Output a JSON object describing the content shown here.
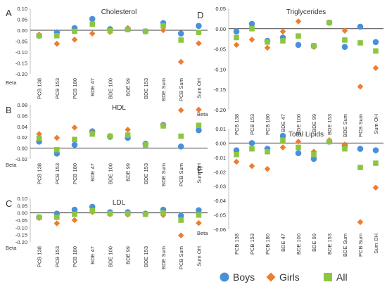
{
  "legend": {
    "position": "bottom-right",
    "entries": [
      {
        "name": "Boys",
        "marker": "circle",
        "color": "#4A90D9"
      },
      {
        "name": "Girls",
        "marker": "diamond",
        "color": "#ED7D31"
      },
      {
        "name": "All",
        "marker": "square",
        "color": "#8CC63F"
      }
    ]
  },
  "chart_data": [
    {
      "letter": "A",
      "type": "scatter",
      "title": "Cholesterol",
      "ylabel": "Beta",
      "ylim": [
        -0.2,
        0.1
      ],
      "yticks": [
        0.1,
        0.05,
        0,
        -0.05,
        -0.1,
        -0.15,
        -0.2
      ],
      "yticklabels": [
        "0.10",
        "0.05",
        "0.00",
        "-0.05",
        "-0.10",
        "-0.15",
        "-0.20"
      ],
      "categories": [
        "PCB 138",
        "PCB 153",
        "PCB 180",
        "BDE 47",
        "BDE 100",
        "BDE 99",
        "BDE 153",
        "BDE Sum",
        "PCB Sum",
        "Sum OH"
      ],
      "series": [
        {
          "name": "Boys",
          "values": [
            -0.025,
            -0.01,
            0.01,
            0.052,
            0.005,
            0.005,
            -0.005,
            0.033,
            -0.015,
            0.02
          ]
        },
        {
          "name": "Girls",
          "values": [
            -0.02,
            -0.062,
            -0.043,
            -0.015,
            -0.008,
            0.01,
            -0.005,
            0.0,
            -0.145,
            -0.06
          ]
        },
        {
          "name": "All",
          "values": [
            -0.025,
            -0.025,
            -0.005,
            0.028,
            -0.002,
            0.003,
            -0.005,
            0.02,
            -0.045,
            -0.01
          ]
        }
      ]
    },
    {
      "letter": "B",
      "type": "scatter",
      "title": "HDL",
      "ylabel": "Beta",
      "ylim": [
        -0.02,
        0.08
      ],
      "yticks": [
        0.08,
        0.06,
        0.04,
        0.02,
        0,
        -0.02
      ],
      "yticklabels": [
        "0.08",
        "0.06",
        "0.04",
        "0.02",
        "0.00",
        "-0.02"
      ],
      "categories": [
        "PCB 138",
        "PCB 153",
        "PCB 180",
        "BDE 47",
        "BDE 100",
        "BDE 99",
        "BDE 153",
        "BDE Sum",
        "PCB Sum",
        "Sum OH"
      ],
      "series": [
        {
          "name": "Boys",
          "values": [
            0.012,
            -0.01,
            0.006,
            0.031,
            0.021,
            0.019,
            0.008,
            0.043,
            0.003,
            0.033
          ]
        },
        {
          "name": "Girls",
          "values": [
            0.026,
            0.019,
            0.038,
            0.028,
            0.023,
            0.034,
            0.005,
            0.043,
            0.07,
            0.071
          ]
        },
        {
          "name": "All",
          "values": [
            0.018,
            -0.003,
            0.016,
            0.026,
            0.022,
            0.024,
            0.006,
            0.041,
            0.022,
            0.042
          ]
        }
      ]
    },
    {
      "letter": "C",
      "type": "scatter",
      "title": "LDL",
      "ylabel": "Beta",
      "ylim": [
        -0.2,
        0.1
      ],
      "yticks": [
        0.1,
        0.05,
        0,
        -0.05,
        -0.1,
        -0.15,
        -0.2
      ],
      "yticklabels": [
        "0.10",
        "0.05",
        "0.00",
        "-0.05",
        "-0.10",
        "-0.15",
        "-0.20"
      ],
      "categories": [
        "PCB 138",
        "PCB 153",
        "PCB 180",
        "BDE 47",
        "BDE 100",
        "BDE 99",
        "BDE 153",
        "BDE Sum",
        "PCB Sum",
        "Sum OH"
      ],
      "series": [
        {
          "name": "Boys",
          "values": [
            -0.03,
            -0.005,
            0.022,
            0.042,
            0.005,
            0.005,
            -0.005,
            0.022,
            -0.02,
            0.018
          ]
        },
        {
          "name": "Girls",
          "values": [
            -0.035,
            -0.072,
            -0.05,
            0.005,
            -0.01,
            -0.012,
            -0.01,
            -0.015,
            -0.155,
            -0.07
          ]
        },
        {
          "name": "All",
          "values": [
            -0.03,
            -0.03,
            -0.01,
            0.015,
            -0.005,
            -0.005,
            -0.01,
            0.0,
            -0.05,
            -0.015
          ]
        }
      ]
    },
    {
      "letter": "D",
      "type": "scatter",
      "title": "Triglycerides",
      "ylabel": "Beta",
      "ylim": [
        -0.2,
        0.05
      ],
      "yticks": [
        0.05,
        0,
        -0.05,
        -0.1,
        -0.15,
        -0.2
      ],
      "yticklabels": [
        "0.05",
        "0.00",
        "-0.05",
        "-0.10",
        "-0.15",
        "-0.20"
      ],
      "categories": [
        "PCB 138",
        "PCB 153",
        "PCB 180",
        "BDE 47",
        "BDE 100",
        "BDE 99",
        "BDE 153",
        "BDE Sum",
        "PCB Sum",
        "Sum OH"
      ],
      "series": [
        {
          "name": "Boys",
          "values": [
            -0.007,
            0.012,
            -0.03,
            -0.022,
            -0.04,
            -0.043,
            0.015,
            -0.045,
            0.005,
            -0.033
          ]
        },
        {
          "name": "Girls",
          "values": [
            -0.04,
            -0.027,
            -0.047,
            -0.007,
            0.018,
            -0.045,
            0.015,
            -0.005,
            -0.143,
            -0.097
          ]
        },
        {
          "name": "All",
          "values": [
            -0.022,
            0.0,
            -0.033,
            -0.03,
            -0.018,
            -0.042,
            0.015,
            -0.028,
            -0.035,
            -0.055
          ]
        }
      ]
    },
    {
      "letter": "E",
      "type": "scatter",
      "title": "Total Lipids",
      "ylabel": "Beta",
      "ylim": [
        -0.06,
        0.01
      ],
      "yticks": [
        0.01,
        0,
        -0.01,
        -0.02,
        -0.03,
        -0.04,
        -0.05,
        -0.06
      ],
      "yticklabels": [
        "0.01",
        "0.00",
        "-0.01",
        "-0.02",
        "-0.03",
        "-0.04",
        "-0.05",
        "-0.06"
      ],
      "categories": [
        "PCB 138",
        "PCB 153",
        "PCB 180",
        "BDE 47",
        "BDE 100",
        "BDE 99",
        "BDE 153",
        "BDE Sum",
        "PCB Sum",
        "Sum OH"
      ],
      "series": [
        {
          "name": "Boys",
          "values": [
            -0.005,
            0.0,
            -0.004,
            0.005,
            -0.007,
            -0.011,
            0.001,
            -0.002,
            -0.004,
            -0.005
          ]
        },
        {
          "name": "Girls",
          "values": [
            -0.013,
            -0.016,
            -0.018,
            -0.003,
            0.001,
            -0.006,
            0.002,
            -0.001,
            -0.055,
            -0.031
          ]
        },
        {
          "name": "All",
          "values": [
            -0.008,
            -0.004,
            -0.006,
            0.002,
            -0.003,
            -0.008,
            0.001,
            -0.004,
            -0.017,
            -0.014
          ]
        }
      ]
    }
  ]
}
